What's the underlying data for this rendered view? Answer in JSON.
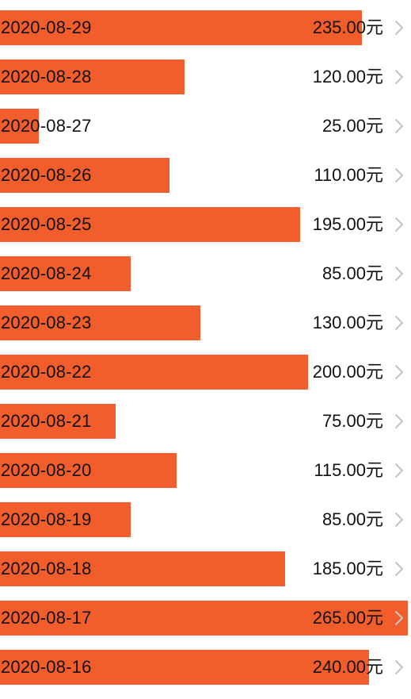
{
  "colors": {
    "bar": "#F15D2B",
    "chevron": "#C4C4C4"
  },
  "chart_data": {
    "type": "bar",
    "orientation": "horizontal",
    "unit": "元",
    "categories": [
      "2020-08-29",
      "2020-08-28",
      "2020-08-27",
      "2020-08-26",
      "2020-08-25",
      "2020-08-24",
      "2020-08-23",
      "2020-08-22",
      "2020-08-21",
      "2020-08-20",
      "2020-08-19",
      "2020-08-18",
      "2020-08-17",
      "2020-08-16"
    ],
    "values": [
      235,
      120,
      25,
      110,
      195,
      85,
      130,
      200,
      75,
      115,
      85,
      185,
      265,
      240
    ],
    "value_labels": [
      "235.00元",
      "120.00元",
      "25.00元",
      "110.00元",
      "195.00元",
      "85.00元",
      "130.00元",
      "200.00元",
      "75.00元",
      "115.00元",
      "85.00元",
      "185.00元",
      "265.00元",
      "240.00元"
    ],
    "xlim": [
      0,
      265
    ]
  },
  "row_icon": "chevron-right-icon"
}
